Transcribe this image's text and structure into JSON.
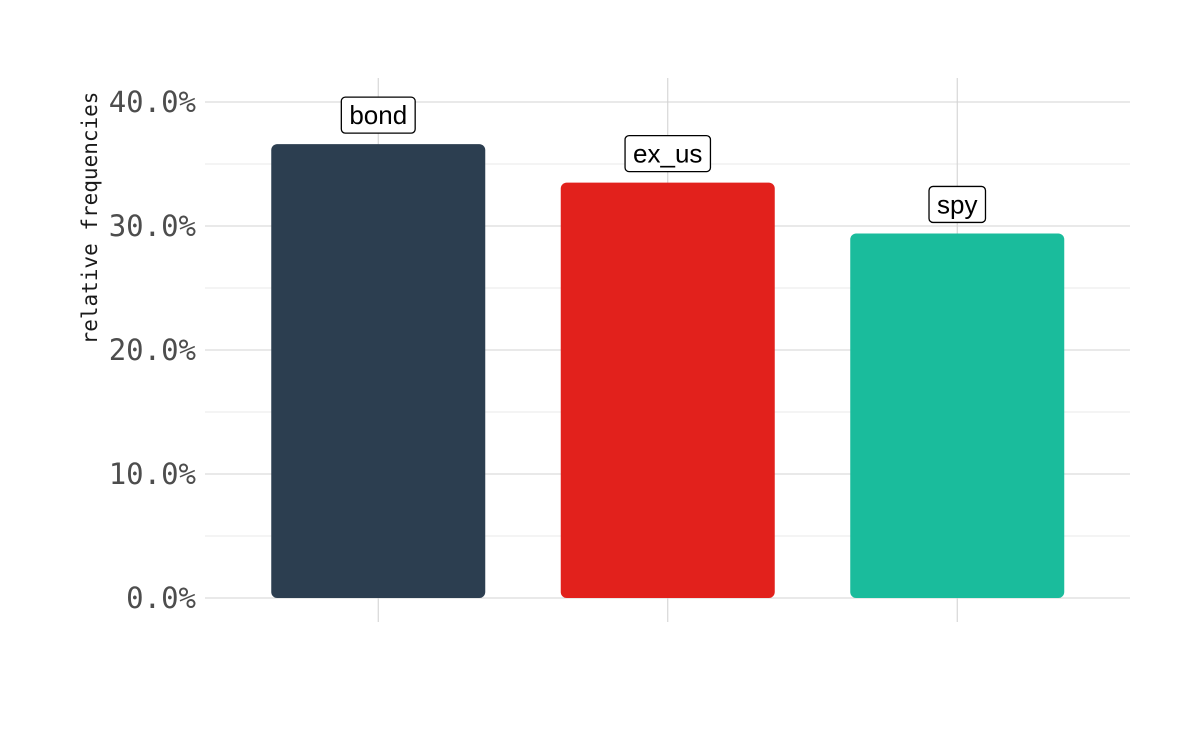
{
  "chart_data": {
    "type": "bar",
    "categories": [
      "bond",
      "ex_us",
      "spy"
    ],
    "values": [
      36.6,
      33.5,
      29.4
    ],
    "value_unit": "percent",
    "colors": [
      "#2c3e50",
      "#e2211c",
      "#1abc9c"
    ],
    "data_labels": [
      "bond",
      "ex_us",
      "spy"
    ],
    "ylabel": "relative frequencies",
    "xlabel": "",
    "title": "",
    "ylim": [
      0,
      40
    ],
    "yticks": [
      0,
      10,
      20,
      30,
      40
    ],
    "ytick_labels": [
      "0.0%",
      "10.0%",
      "20.0%",
      "30.0%",
      "40.0%"
    ],
    "grid": true,
    "legend": "none"
  }
}
